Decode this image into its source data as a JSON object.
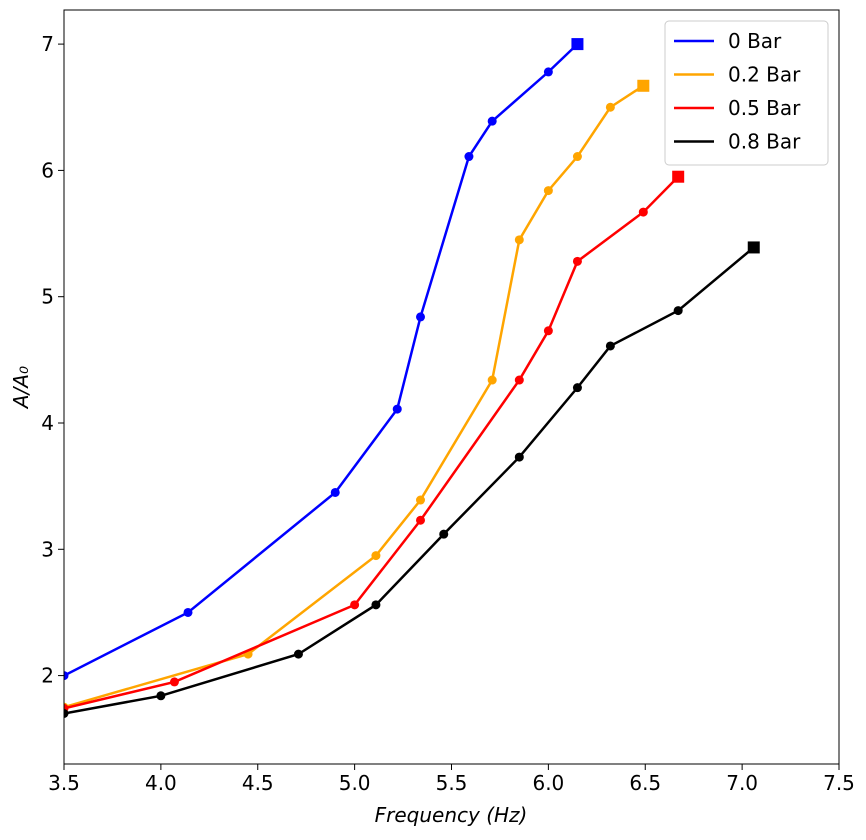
{
  "chart_data": {
    "type": "line",
    "x_label": "Frequency (Hz)",
    "y_label": "A/A₀",
    "xlim": [
      3.5,
      7.5
    ],
    "ylim": [
      1.3,
      7.27
    ],
    "xticks": [
      3.5,
      {
        "value": 4,
        "label": "4.0"
      },
      4.5,
      {
        "value": 5,
        "label": "5.0"
      },
      5.5,
      {
        "value": 6,
        "label": "6.0"
      },
      6.5,
      {
        "value": 7,
        "label": "7.0"
      },
      7.5
    ],
    "yticks": [
      2,
      3,
      4,
      5,
      6,
      7
    ],
    "grid": false,
    "legend": "upper right",
    "marker": "circle",
    "end_marker": "square",
    "series": [
      {
        "name": "0 Bar",
        "color": "#0000ff",
        "x": [
          3.5,
          4.14,
          4.9,
          5.22,
          5.34,
          5.59,
          5.71,
          6.0,
          6.15
        ],
        "values": [
          2.0,
          2.5,
          3.45,
          4.11,
          4.84,
          6.11,
          6.39,
          6.78,
          7.0
        ]
      },
      {
        "name": "0.2 Bar",
        "color": "#ffa500",
        "x": [
          3.5,
          4.45,
          5.11,
          5.34,
          5.71,
          5.85,
          6.0,
          6.15,
          6.32,
          6.49
        ],
        "values": [
          1.75,
          2.17,
          2.95,
          3.39,
          4.34,
          5.45,
          5.84,
          6.11,
          6.5,
          6.67
        ]
      },
      {
        "name": "0.5 Bar",
        "color": "#ff0000",
        "x": [
          3.5,
          4.07,
          5.0,
          5.34,
          5.85,
          6.0,
          6.15,
          6.49,
          6.67
        ],
        "values": [
          1.74,
          1.95,
          2.56,
          3.23,
          4.34,
          4.73,
          5.28,
          5.67,
          5.95
        ]
      },
      {
        "name": "0.8 Bar",
        "color": "#000000",
        "x": [
          3.5,
          4.0,
          4.71,
          5.11,
          5.46,
          5.85,
          6.15,
          6.32,
          6.67,
          7.06
        ],
        "values": [
          1.7,
          1.84,
          2.17,
          2.56,
          3.12,
          3.73,
          4.28,
          4.61,
          4.89,
          5.39
        ]
      }
    ]
  }
}
